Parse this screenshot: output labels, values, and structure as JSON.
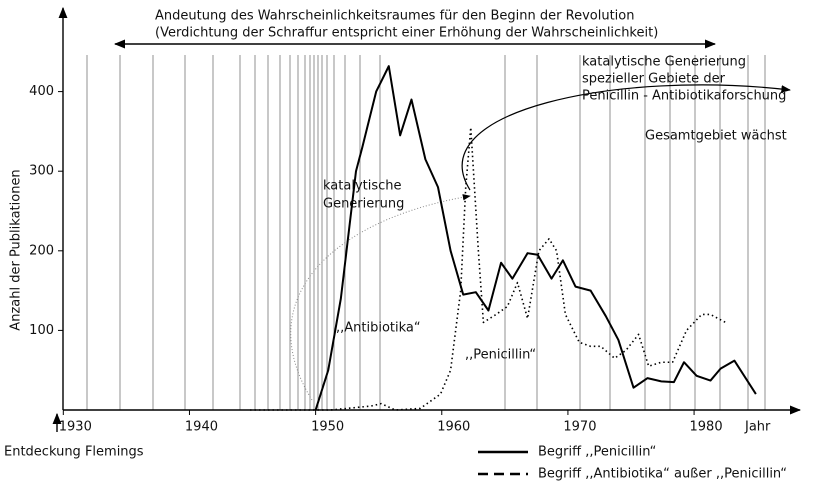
{
  "chart_data": {
    "type": "line",
    "title": [
      "Andeutung des Wahrscheinlichkeitsraumes für den Beginn der Revolution",
      "(Verdichtung der Schraffur entspricht einer Erhöhung der Wahrscheinlichkeit)"
    ],
    "xlabel": "Jahr",
    "ylabel": "Anzahl der Publikationen",
    "xlim": [
      1929.5,
      1988
    ],
    "xticks": [
      1930,
      1940,
      1950,
      1960,
      1970,
      1980
    ],
    "ylim": [
      0,
      500
    ],
    "yticks": [
      100,
      200,
      300,
      400
    ],
    "annotations": {
      "fleming": "Entdeckung Flemings",
      "special": [
        "katalytische Generierung",
        "spezieller Gebiete der",
        "Penicillin - Antibiotikaforschung"
      ],
      "growth": "Gesamtgebiet wächst",
      "catalytic": [
        "katalytische",
        "Generierung"
      ],
      "antibiotika": ",,Antibiotika“",
      "penicillin": ",,Penicillin“"
    },
    "series": [
      {
        "name": "Begriff ,,Penicillin“",
        "color": "#000000",
        "x": [
          1950,
          1951,
          1952,
          1953.2,
          1953.7,
          1954.8,
          1955.8,
          1956.7,
          1957.6,
          1958.7,
          1959.7,
          1960.7,
          1961.7,
          1962.7,
          1963.7,
          1964.7,
          1965.6,
          1966.8,
          1967.6,
          1968.7,
          1969.6,
          1970.6,
          1971.8,
          1973,
          1974,
          1975.2,
          1976.3,
          1977.4,
          1978.4,
          1979.2,
          1980.2,
          1981.3,
          1982.1,
          1983.2,
          1984.9
        ],
        "values": [
          0,
          50,
          140,
          300,
          330,
          400,
          432,
          345,
          390,
          315,
          280,
          200,
          145,
          148,
          125,
          185,
          165,
          197,
          195,
          165,
          188,
          155,
          150,
          118,
          88,
          28,
          40,
          36,
          35,
          60,
          43,
          37,
          52,
          62,
          20
        ]
      },
      {
        "name": "Begriff ,,Antibiotika“ außer ,,Penicillin“",
        "color": "#000000",
        "x": [
          1944.8,
          1951.2,
          1954.4,
          1955.2,
          1956.3,
          1958.3,
          1959.9,
          1960.7,
          1961.5,
          1961.9,
          1962.3,
          1962.9,
          1963.3,
          1964.3,
          1965.2,
          1966,
          1966.8,
          1967.7,
          1968.5,
          1969.1,
          1969.8,
          1970.9,
          1971.8,
          1972.6,
          1973.7,
          1974.6,
          1975.6,
          1976.4,
          1977.4,
          1978.3,
          1979.4,
          1980.6,
          1981.3,
          1982.5
        ],
        "values": [
          0,
          0,
          5,
          8,
          0,
          2,
          20,
          50,
          150,
          280,
          355,
          200,
          110,
          120,
          130,
          160,
          115,
          200,
          215,
          200,
          120,
          85,
          80,
          80,
          65,
          75,
          95,
          55,
          60,
          60,
          100,
          120,
          120,
          110
        ]
      }
    ]
  }
}
